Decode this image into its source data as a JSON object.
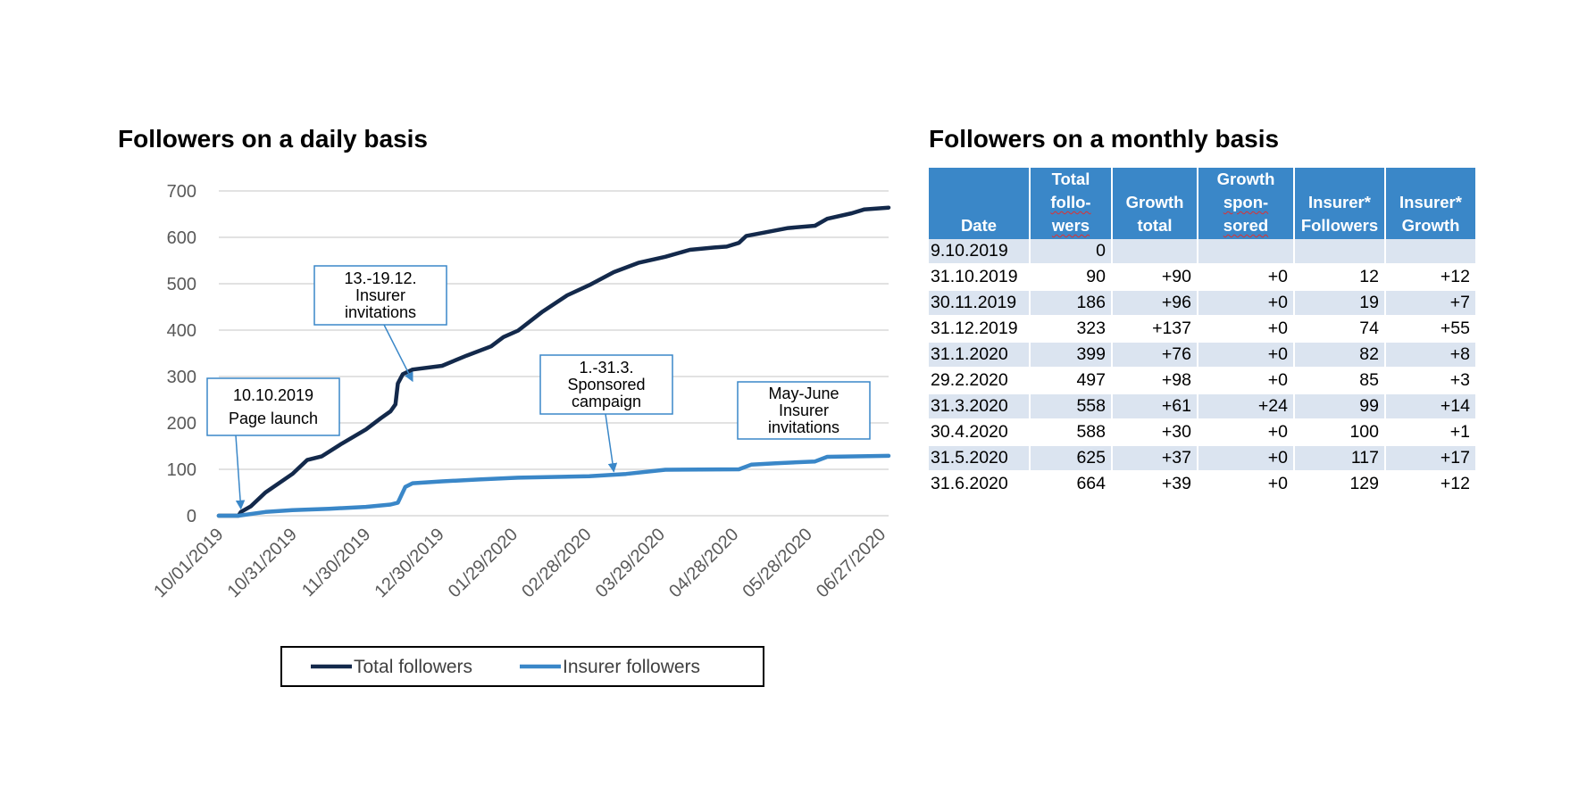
{
  "left_title": "Followers on a daily basis",
  "right_title": "Followers on a monthly basis",
  "chart_data": {
    "type": "line",
    "title": "Followers on a daily basis",
    "x_tick_labels": [
      "10/01/2019",
      "10/31/2019",
      "11/30/2019",
      "12/30/2019",
      "01/29/2020",
      "02/28/2020",
      "03/29/2020",
      "04/28/2020",
      "05/28/2020",
      "06/27/2020"
    ],
    "x_range": [
      "2019-10-01",
      "2020-06-30"
    ],
    "ylim": [
      0,
      700
    ],
    "yticks": [
      0,
      100,
      200,
      300,
      400,
      500,
      600,
      700
    ],
    "grid": true,
    "legend_position": "bottom",
    "series": [
      {
        "name": "Total followers",
        "color": "#13294b",
        "points": [
          [
            "2019-10-01",
            0
          ],
          [
            "2019-10-09",
            0
          ],
          [
            "2019-10-10",
            8
          ],
          [
            "2019-10-14",
            20
          ],
          [
            "2019-10-20",
            50
          ],
          [
            "2019-10-31",
            90
          ],
          [
            "2019-11-06",
            120
          ],
          [
            "2019-11-12",
            128
          ],
          [
            "2019-11-20",
            155
          ],
          [
            "2019-11-30",
            186
          ],
          [
            "2019-12-06",
            210
          ],
          [
            "2019-12-10",
            225
          ],
          [
            "2019-12-12",
            240
          ],
          [
            "2019-12-13",
            285
          ],
          [
            "2019-12-15",
            305
          ],
          [
            "2019-12-19",
            315
          ],
          [
            "2019-12-31",
            323
          ],
          [
            "2020-01-10",
            345
          ],
          [
            "2020-01-20",
            365
          ],
          [
            "2020-01-25",
            385
          ],
          [
            "2020-01-31",
            399
          ],
          [
            "2020-02-10",
            440
          ],
          [
            "2020-02-20",
            475
          ],
          [
            "2020-02-29",
            497
          ],
          [
            "2020-03-10",
            525
          ],
          [
            "2020-03-20",
            545
          ],
          [
            "2020-03-31",
            558
          ],
          [
            "2020-04-10",
            573
          ],
          [
            "2020-04-20",
            578
          ],
          [
            "2020-04-25",
            580
          ],
          [
            "2020-04-30",
            588
          ],
          [
            "2020-05-03",
            603
          ],
          [
            "2020-05-10",
            610
          ],
          [
            "2020-05-20",
            620
          ],
          [
            "2020-05-31",
            625
          ],
          [
            "2020-06-05",
            640
          ],
          [
            "2020-06-15",
            652
          ],
          [
            "2020-06-20",
            660
          ],
          [
            "2020-06-30",
            664
          ]
        ]
      },
      {
        "name": "Insurer followers",
        "color": "#3a87c8",
        "points": [
          [
            "2019-10-01",
            0
          ],
          [
            "2019-10-09",
            0
          ],
          [
            "2019-10-20",
            8
          ],
          [
            "2019-10-31",
            12
          ],
          [
            "2019-11-15",
            15
          ],
          [
            "2019-11-30",
            19
          ],
          [
            "2019-12-10",
            24
          ],
          [
            "2019-12-13",
            28
          ],
          [
            "2019-12-16",
            62
          ],
          [
            "2019-12-19",
            70
          ],
          [
            "2019-12-31",
            74
          ],
          [
            "2020-01-15",
            78
          ],
          [
            "2020-01-31",
            82
          ],
          [
            "2020-02-29",
            85
          ],
          [
            "2020-03-15",
            90
          ],
          [
            "2020-03-31",
            99
          ],
          [
            "2020-04-30",
            100
          ],
          [
            "2020-05-05",
            110
          ],
          [
            "2020-05-15",
            113
          ],
          [
            "2020-05-31",
            117
          ],
          [
            "2020-06-05",
            127
          ],
          [
            "2020-06-30",
            129
          ]
        ]
      }
    ],
    "annotations": [
      {
        "text": "10.10.2019\nPage launch",
        "points_to": [
          "2019-10-10",
          15
        ]
      },
      {
        "text": "13.-19.12.\nInsurer\ninvitations",
        "points_to": [
          "2019-12-19",
          290
        ]
      },
      {
        "text": "1.-31.3.\nSponsored\ncampaign",
        "points_to": [
          "2020-03-10",
          95
        ]
      },
      {
        "text": "May-June\nInsurer\ninvitations",
        "points_to": null
      }
    ]
  },
  "table": {
    "headers": [
      [
        "Date"
      ],
      [
        "Total",
        "follo-",
        "wers"
      ],
      [
        "Growth",
        "total"
      ],
      [
        "Growth",
        "spon-",
        "sored"
      ],
      [
        "Insurer*",
        "Followers"
      ],
      [
        "Insurer*",
        "Growth"
      ]
    ],
    "rows": [
      [
        "9.10.2019",
        "0",
        "",
        "",
        "",
        ""
      ],
      [
        "31.10.2019",
        "90",
        "+90",
        "+0",
        "12",
        "+12"
      ],
      [
        "30.11.2019",
        "186",
        "+96",
        "+0",
        "19",
        "+7"
      ],
      [
        "31.12.2019",
        "323",
        "+137",
        "+0",
        "74",
        "+55"
      ],
      [
        "31.1.2020",
        "399",
        "+76",
        "+0",
        "82",
        "+8"
      ],
      [
        "29.2.2020",
        "497",
        "+98",
        "+0",
        "85",
        "+3"
      ],
      [
        "31.3.2020",
        "558",
        "+61",
        "+24",
        "99",
        "+14"
      ],
      [
        "30.4.2020",
        "588",
        "+30",
        "+0",
        "100",
        "+1"
      ],
      [
        "31.5.2020",
        "625",
        "+37",
        "+0",
        "117",
        "+17"
      ],
      [
        "31.6.2020",
        "664",
        "+39",
        "+0",
        "129",
        "+12"
      ]
    ]
  }
}
